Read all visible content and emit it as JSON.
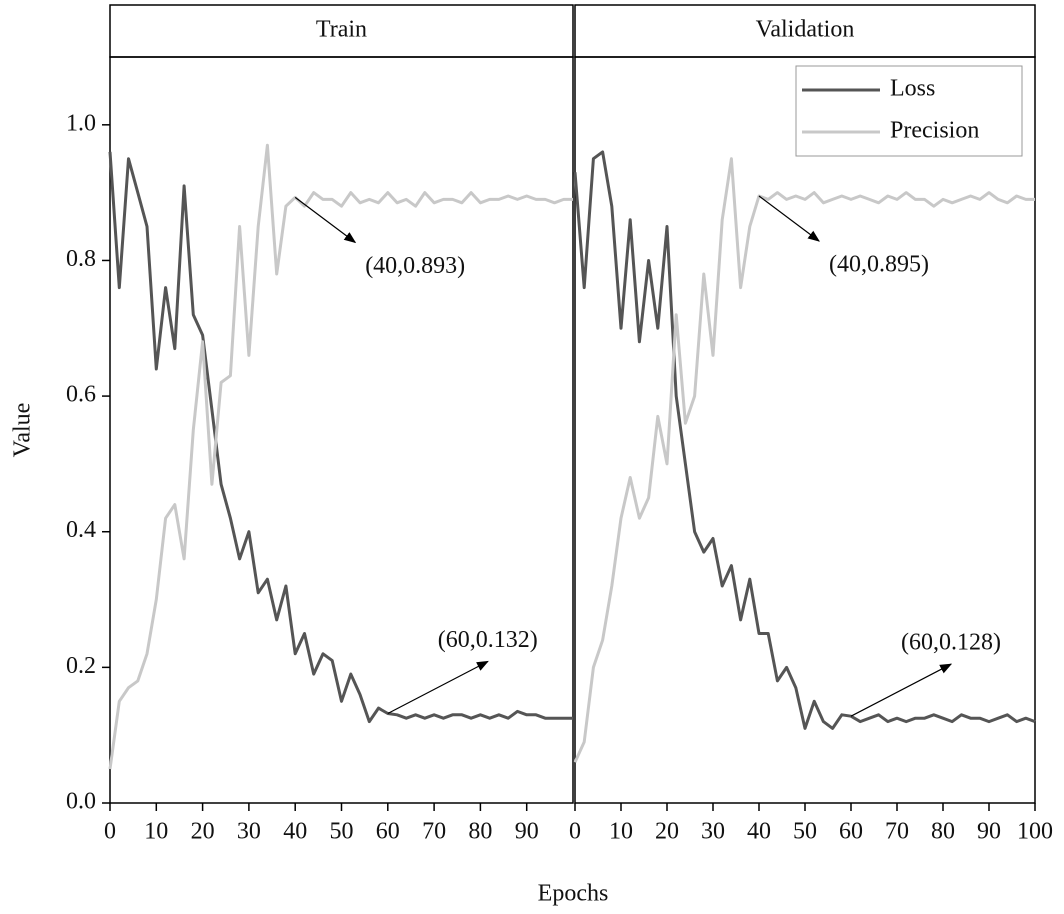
{
  "figure": {
    "ylabel": "Value",
    "xlabel": "Epochs"
  },
  "chart_data": [
    {
      "type": "line",
      "title": "Train",
      "x": [
        0,
        2,
        4,
        6,
        8,
        10,
        12,
        14,
        16,
        18,
        20,
        22,
        24,
        26,
        28,
        30,
        32,
        34,
        36,
        38,
        40,
        42,
        44,
        46,
        48,
        50,
        52,
        54,
        56,
        58,
        60,
        62,
        64,
        66,
        68,
        70,
        72,
        74,
        76,
        78,
        80,
        82,
        84,
        86,
        88,
        90,
        92,
        94,
        96,
        98,
        100
      ],
      "series": [
        {
          "name": "Loss",
          "color": "#555555",
          "values": [
            0.96,
            0.76,
            0.95,
            0.9,
            0.85,
            0.64,
            0.76,
            0.67,
            0.91,
            0.72,
            0.69,
            0.58,
            0.47,
            0.42,
            0.36,
            0.4,
            0.31,
            0.33,
            0.27,
            0.32,
            0.22,
            0.25,
            0.19,
            0.22,
            0.21,
            0.15,
            0.19,
            0.16,
            0.12,
            0.14,
            0.132,
            0.13,
            0.125,
            0.13,
            0.125,
            0.13,
            0.125,
            0.13,
            0.13,
            0.125,
            0.13,
            0.125,
            0.13,
            0.125,
            0.135,
            0.13,
            0.13,
            0.125,
            0.125,
            0.125,
            0.125
          ]
        },
        {
          "name": "Precision",
          "color": "#c8c8c8",
          "values": [
            0.05,
            0.15,
            0.17,
            0.18,
            0.22,
            0.3,
            0.42,
            0.44,
            0.36,
            0.55,
            0.68,
            0.47,
            0.62,
            0.63,
            0.85,
            0.66,
            0.85,
            0.97,
            0.78,
            0.88,
            0.893,
            0.88,
            0.9,
            0.89,
            0.89,
            0.88,
            0.9,
            0.885,
            0.89,
            0.885,
            0.9,
            0.885,
            0.89,
            0.88,
            0.9,
            0.885,
            0.89,
            0.89,
            0.885,
            0.9,
            0.885,
            0.89,
            0.89,
            0.895,
            0.89,
            0.895,
            0.89,
            0.89,
            0.885,
            0.89,
            0.89
          ]
        }
      ],
      "xlim": [
        0,
        100
      ],
      "ylim": [
        0,
        1.1
      ],
      "xticks": [
        0,
        10,
        20,
        30,
        40,
        50,
        60,
        70,
        80,
        90
      ],
      "yticks": [
        {
          "value": 0,
          "label": "0.0"
        },
        0.2,
        0.4,
        0.6,
        0.8,
        {
          "value": 1,
          "label": "1.0"
        }
      ],
      "legend": false,
      "annotations": [
        {
          "text": "(40,0.893)",
          "x": 40,
          "y": 0.893
        },
        {
          "text": "(60,0.132)",
          "x": 60,
          "y": 0.132
        }
      ]
    },
    {
      "type": "line",
      "title": "Validation",
      "x": [
        0,
        2,
        4,
        6,
        8,
        10,
        12,
        14,
        16,
        18,
        20,
        22,
        24,
        26,
        28,
        30,
        32,
        34,
        36,
        38,
        40,
        42,
        44,
        46,
        48,
        50,
        52,
        54,
        56,
        58,
        60,
        62,
        64,
        66,
        68,
        70,
        72,
        74,
        76,
        78,
        80,
        82,
        84,
        86,
        88,
        90,
        92,
        94,
        96,
        98,
        100
      ],
      "series": [
        {
          "name": "Loss",
          "color": "#555555",
          "values": [
            0.93,
            0.76,
            0.95,
            0.96,
            0.88,
            0.7,
            0.86,
            0.68,
            0.8,
            0.7,
            0.85,
            0.6,
            0.5,
            0.4,
            0.37,
            0.39,
            0.32,
            0.35,
            0.27,
            0.33,
            0.25,
            0.25,
            0.18,
            0.2,
            0.17,
            0.11,
            0.15,
            0.12,
            0.11,
            0.13,
            0.128,
            0.12,
            0.125,
            0.13,
            0.12,
            0.125,
            0.12,
            0.125,
            0.125,
            0.13,
            0.125,
            0.12,
            0.13,
            0.125,
            0.125,
            0.12,
            0.125,
            0.13,
            0.12,
            0.125,
            0.12
          ]
        },
        {
          "name": "Precision",
          "color": "#c8c8c8",
          "values": [
            0.06,
            0.09,
            0.2,
            0.24,
            0.32,
            0.42,
            0.48,
            0.42,
            0.45,
            0.57,
            0.5,
            0.72,
            0.56,
            0.6,
            0.78,
            0.66,
            0.86,
            0.95,
            0.76,
            0.85,
            0.895,
            0.89,
            0.9,
            0.89,
            0.895,
            0.89,
            0.9,
            0.885,
            0.89,
            0.895,
            0.89,
            0.895,
            0.89,
            0.885,
            0.895,
            0.89,
            0.9,
            0.89,
            0.89,
            0.88,
            0.89,
            0.885,
            0.89,
            0.895,
            0.89,
            0.9,
            0.89,
            0.885,
            0.895,
            0.89,
            0.89
          ]
        }
      ],
      "xlim": [
        0,
        100
      ],
      "ylim": [
        0,
        1.1
      ],
      "xticks": [
        0,
        10,
        20,
        30,
        40,
        50,
        60,
        70,
        80,
        90,
        100
      ],
      "legend": "upper right",
      "annotations": [
        {
          "text": "(40,0.895)",
          "x": 40,
          "y": 0.895
        },
        {
          "text": "(60,0.128)",
          "x": 60,
          "y": 0.128
        }
      ]
    }
  ]
}
